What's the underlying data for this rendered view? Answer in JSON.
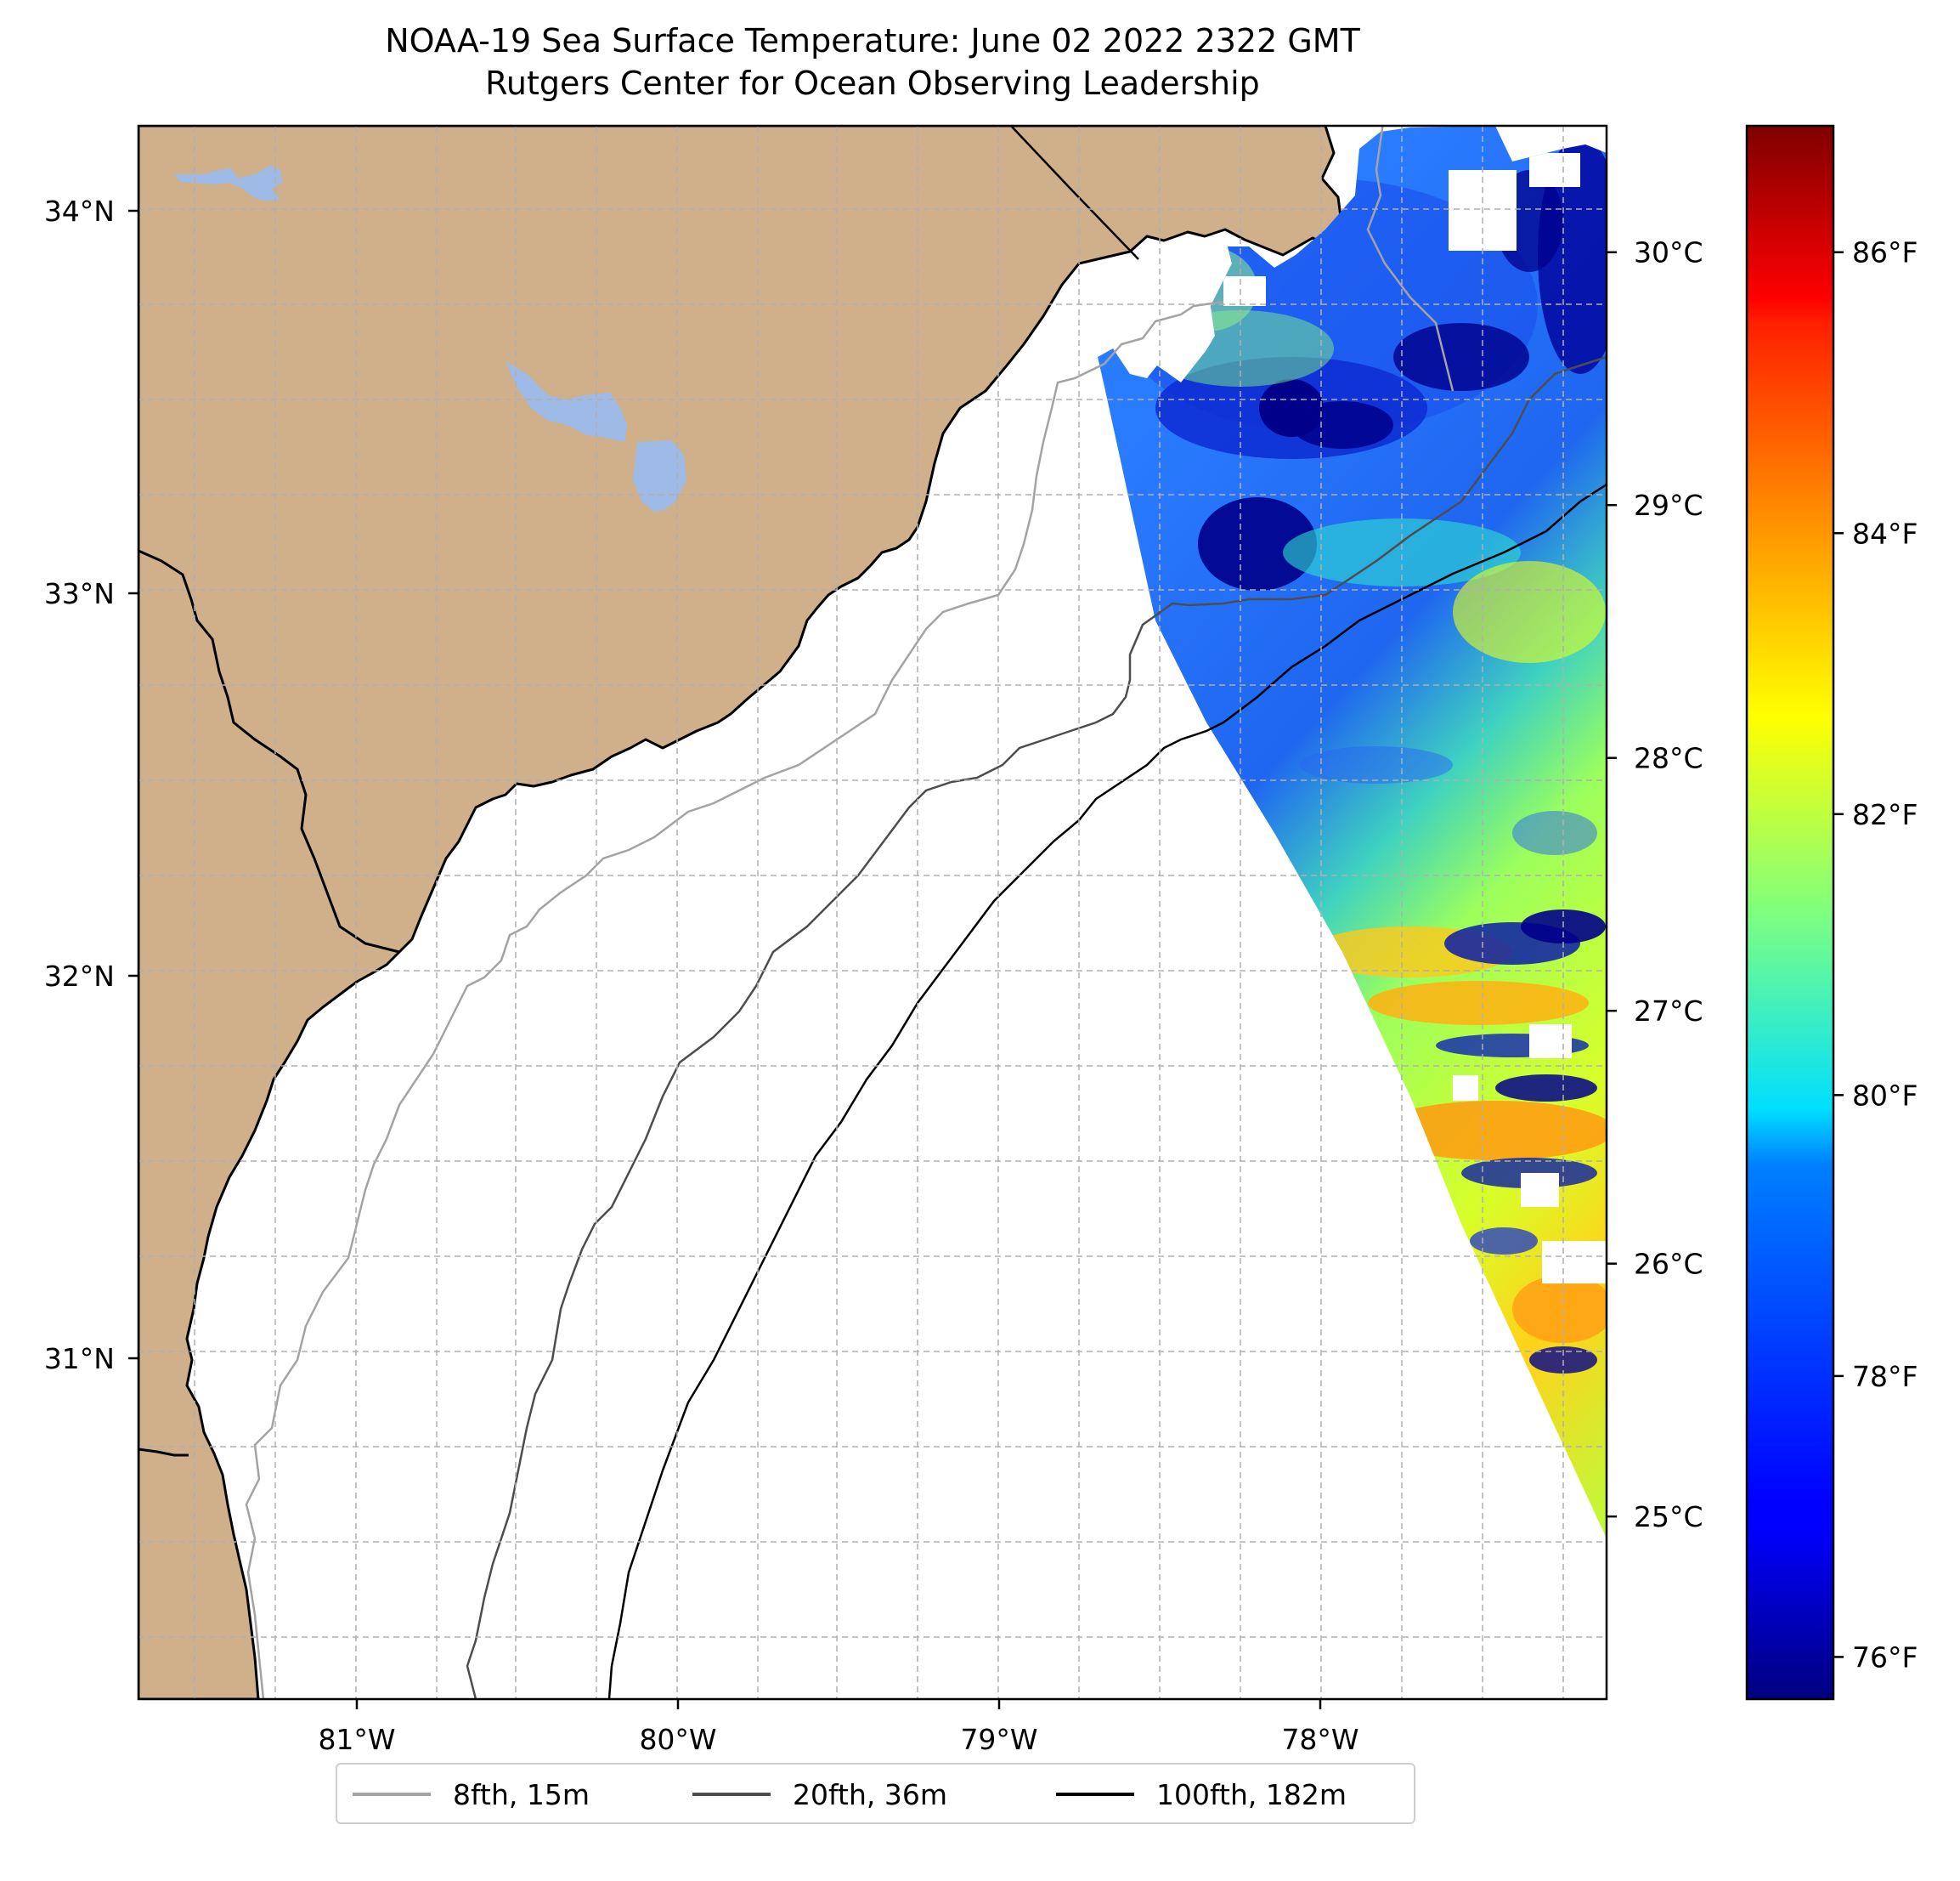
{
  "title": {
    "line1": "NOAA-19 Sea Surface Temperature: June 02 2022 2322 GMT",
    "line2": "Rutgers Center for Ocean Observing Leadership"
  },
  "map": {
    "lat_ticks": [
      {
        "value": 34,
        "label": "34°N"
      },
      {
        "value": 33,
        "label": "33°N"
      },
      {
        "value": 32,
        "label": "32°N"
      },
      {
        "value": 31,
        "label": "31°N"
      }
    ],
    "lon_ticks": [
      {
        "value": -81,
        "label": "81°W"
      },
      {
        "value": -80,
        "label": "80°W"
      },
      {
        "value": -79,
        "label": "79°W"
      },
      {
        "value": -78,
        "label": "78°W"
      }
    ],
    "colors": {
      "land": "#cfb08a",
      "lake": "#9dbbe6",
      "isobath_8fth": "#a3a3a3",
      "isobath_20fth": "#4d4d4d",
      "isobath_100fth": "#000000",
      "grid": "#b0b0b0"
    }
  },
  "colorbar": {
    "celsius_ticks": [
      {
        "value": 30,
        "label": "30°C"
      },
      {
        "value": 29,
        "label": "29°C"
      },
      {
        "value": 28,
        "label": "28°C"
      },
      {
        "value": 27,
        "label": "27°C"
      },
      {
        "value": 26,
        "label": "26°C"
      },
      {
        "value": 25,
        "label": "25°C"
      }
    ],
    "fahrenheit_ticks": [
      {
        "value": 86,
        "label": "86°F"
      },
      {
        "value": 84,
        "label": "84°F"
      },
      {
        "value": 82,
        "label": "82°F"
      },
      {
        "value": 80,
        "label": "80°F"
      },
      {
        "value": 78,
        "label": "78°F"
      },
      {
        "value": 76,
        "label": "76°F"
      }
    ],
    "range_f": [
      75.7,
      86.9
    ],
    "colormap": "jet"
  },
  "legend": {
    "items": [
      {
        "label": "8fth, 15m",
        "color": "#a3a3a3"
      },
      {
        "label": "20fth, 36m",
        "color": "#4d4d4d"
      },
      {
        "label": "100fth, 182m",
        "color": "#000000"
      }
    ]
  }
}
